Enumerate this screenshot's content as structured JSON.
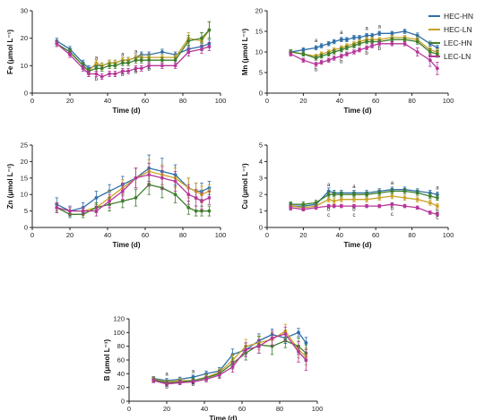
{
  "legend": [
    {
      "name": "HEC-HN",
      "color": "#2f6fa7"
    },
    {
      "name": "HEC-LN",
      "color": "#c9a227"
    },
    {
      "name": "LEC-HN",
      "color": "#3e7e2c"
    },
    {
      "name": "LEC-LN",
      "color": "#b6379a"
    }
  ],
  "chart_data": [
    {
      "type": "line",
      "ylabel": "Fe (μmol L⁻¹)",
      "xlabel": "Time (d)",
      "xlim": [
        0,
        100
      ],
      "ylim": [
        0,
        30
      ],
      "xticks": [
        0,
        20,
        40,
        60,
        80,
        100
      ],
      "yticks": [
        0,
        10,
        20,
        30
      ],
      "x": [
        13,
        20,
        27,
        30,
        34,
        37,
        41,
        44,
        48,
        51,
        55,
        58,
        62,
        69,
        76,
        83,
        90,
        94
      ],
      "series": [
        {
          "name": "HEC-HN",
          "color": "#2f6fa7",
          "values": [
            19,
            16,
            11,
            9,
            10,
            10,
            11,
            11,
            12,
            12,
            13,
            14,
            14,
            15,
            14,
            16,
            17,
            18
          ],
          "errors": [
            1,
            1,
            1,
            1,
            1,
            1,
            1,
            1,
            1,
            1,
            1,
            1,
            1,
            1,
            1,
            1.5,
            1.5,
            1.5
          ]
        },
        {
          "name": "HEC-LN",
          "color": "#c9a227",
          "values": [
            18,
            15,
            10,
            8,
            11,
            10,
            11,
            11,
            12,
            12,
            13,
            13,
            13,
            13,
            13,
            20,
            19,
            23
          ],
          "errors": [
            1,
            1,
            1,
            1,
            1,
            1,
            1,
            1,
            1,
            1,
            1,
            1,
            1,
            1,
            1,
            2,
            3,
            3
          ]
        },
        {
          "name": "LEC-HN",
          "color": "#3e7e2c",
          "values": [
            18,
            15,
            10,
            8,
            9,
            9,
            10,
            10,
            11,
            11,
            12,
            12,
            12,
            12,
            12,
            19,
            20,
            23
          ],
          "errors": [
            1,
            1,
            1,
            1,
            1,
            1,
            1,
            1,
            1,
            1,
            1,
            1,
            1,
            1,
            1,
            2,
            2,
            3
          ]
        },
        {
          "name": "LEC-LN",
          "color": "#b6379a",
          "values": [
            18,
            14,
            9,
            7,
            7,
            6,
            7,
            7,
            8,
            8,
            9,
            9,
            10,
            10,
            10,
            15,
            16,
            17
          ],
          "errors": [
            1,
            1,
            1,
            1,
            1,
            1,
            1,
            1,
            1,
            1,
            1,
            1,
            1,
            1,
            1,
            1.5,
            1.5,
            1.5
          ]
        }
      ],
      "annotations": [
        {
          "text": "a",
          "x": 34,
          "y": 12.3
        },
        {
          "text": "b",
          "x": 34,
          "y": 4.6
        },
        {
          "text": "a",
          "x": 48,
          "y": 13.5
        },
        {
          "text": "b",
          "x": 48,
          "y": 6.2
        },
        {
          "text": "a",
          "x": 55,
          "y": 14.5
        },
        {
          "text": "b",
          "x": 55,
          "y": 7.2
        },
        {
          "text": "b",
          "x": 62,
          "y": 8.1
        }
      ]
    },
    {
      "type": "line",
      "ylabel": "Mn (μmol L⁻¹)",
      "xlabel": "Time (d)",
      "xlim": [
        0,
        100
      ],
      "ylim": [
        0,
        20
      ],
      "xticks": [
        0,
        20,
        40,
        60,
        80,
        100
      ],
      "yticks": [
        0,
        5,
        10,
        15,
        20
      ],
      "x": [
        13,
        20,
        27,
        30,
        34,
        37,
        41,
        44,
        48,
        51,
        55,
        58,
        62,
        69,
        76,
        83,
        90,
        94
      ],
      "series": [
        {
          "name": "HEC-HN",
          "color": "#2f6fa7",
          "values": [
            10,
            10.5,
            11,
            11.5,
            12,
            12.5,
            13,
            13,
            13.5,
            13.5,
            14,
            14,
            14.5,
            14.5,
            15,
            14,
            12,
            11
          ],
          "errors": [
            0.5,
            0.5,
            0.5,
            0.5,
            0.5,
            0.5,
            0.5,
            0.5,
            0.5,
            0.5,
            0.5,
            0.5,
            0.5,
            0.5,
            0.5,
            0.6,
            0.6,
            0.6
          ]
        },
        {
          "name": "HEC-LN",
          "color": "#c9a227",
          "values": [
            10,
            9.5,
            9,
            9.5,
            10,
            10.5,
            11,
            11.5,
            12,
            12.5,
            13,
            13,
            13,
            13.5,
            13.5,
            13,
            10.5,
            10
          ],
          "errors": [
            0.5,
            0.5,
            0.5,
            0.5,
            0.5,
            0.5,
            0.5,
            0.5,
            0.5,
            0.5,
            0.5,
            0.5,
            0.5,
            0.5,
            0.5,
            0.6,
            0.6,
            0.8
          ]
        },
        {
          "name": "LEC-HN",
          "color": "#3e7e2c",
          "values": [
            10,
            9.5,
            8.5,
            9,
            9.5,
            10,
            10.5,
            11,
            11.5,
            12,
            12.5,
            12.5,
            12.5,
            13,
            13,
            12.5,
            10,
            9.5
          ],
          "errors": [
            0.5,
            0.5,
            0.5,
            0.5,
            0.5,
            0.5,
            0.5,
            0.5,
            0.5,
            0.5,
            0.5,
            0.5,
            0.5,
            0.5,
            0.5,
            0.6,
            0.8,
            0.8
          ]
        },
        {
          "name": "LEC-LN",
          "color": "#b6379a",
          "values": [
            9.5,
            8,
            7,
            7.5,
            8,
            8.5,
            9,
            9.5,
            10,
            10.5,
            11,
            11.5,
            12,
            12,
            12,
            10,
            8,
            6
          ],
          "errors": [
            0.5,
            0.5,
            0.5,
            0.5,
            0.5,
            0.5,
            0.5,
            0.5,
            0.5,
            0.5,
            0.5,
            0.5,
            0.5,
            0.5,
            0.5,
            1,
            1.5,
            1.5
          ]
        }
      ],
      "annotations": [
        {
          "text": "a",
          "x": 27,
          "y": 12.4
        },
        {
          "text": "b",
          "x": 27,
          "y": 5.3
        },
        {
          "text": "a",
          "x": 41,
          "y": 14.3
        },
        {
          "text": "b",
          "x": 41,
          "y": 7.3
        },
        {
          "text": "a",
          "x": 55,
          "y": 15.3
        },
        {
          "text": "b",
          "x": 55,
          "y": 9.3
        },
        {
          "text": "a",
          "x": 62,
          "y": 15.8
        },
        {
          "text": "b",
          "x": 62,
          "y": 10.4
        }
      ]
    },
    {
      "type": "line",
      "ylabel": "Zn (μmol L⁻¹)",
      "xlabel": "Time (d)",
      "xlim": [
        0,
        100
      ],
      "ylim": [
        0,
        25
      ],
      "xticks": [
        0,
        20,
        40,
        60,
        80,
        100
      ],
      "yticks": [
        0,
        5,
        10,
        15,
        20,
        25
      ],
      "x": [
        13,
        20,
        27,
        34,
        41,
        48,
        55,
        62,
        69,
        76,
        83,
        87,
        90,
        94
      ],
      "series": [
        {
          "name": "HEC-HN",
          "color": "#2f6fa7",
          "values": [
            7,
            5,
            6,
            9,
            11,
            13,
            15,
            18,
            17,
            16,
            12,
            11,
            11,
            12
          ],
          "errors": [
            2,
            1.5,
            1.5,
            2,
            2,
            2.5,
            3,
            4,
            4,
            3,
            3,
            2.5,
            2.5,
            2
          ]
        },
        {
          "name": "HEC-LN",
          "color": "#c9a227",
          "values": [
            6,
            5,
            5,
            6,
            9,
            12,
            15,
            17,
            16,
            15,
            12,
            11,
            10,
            11
          ],
          "errors": [
            1.5,
            1,
            1,
            1.5,
            2,
            2.5,
            3,
            3.5,
            3,
            3,
            3,
            2.5,
            2.5,
            2
          ]
        },
        {
          "name": "LEC-HN",
          "color": "#3e7e2c",
          "values": [
            6,
            4,
            4,
            6,
            7,
            8,
            9,
            13,
            12,
            10,
            6,
            5,
            5,
            5
          ],
          "errors": [
            1.5,
            1,
            1,
            1.5,
            2,
            2,
            2.5,
            3,
            3,
            2.5,
            2,
            1.5,
            1.5,
            1.5
          ]
        },
        {
          "name": "LEC-LN",
          "color": "#b6379a",
          "values": [
            6,
            5,
            5,
            5,
            8,
            11,
            15,
            16,
            15,
            14,
            10,
            9,
            8,
            9
          ],
          "errors": [
            1.5,
            1,
            1,
            1.5,
            2,
            2.5,
            3,
            3.5,
            3.5,
            3,
            3,
            2.5,
            2.5,
            2
          ]
        }
      ],
      "annotations": []
    },
    {
      "type": "line",
      "ylabel": "Cu (μmol L⁻¹)",
      "xlabel": "Time (d)",
      "xlim": [
        0,
        100
      ],
      "ylim": [
        0,
        5
      ],
      "xticks": [
        0,
        20,
        40,
        60,
        80,
        100
      ],
      "yticks": [
        0,
        1,
        2,
        3,
        4,
        5
      ],
      "x": [
        13,
        20,
        27,
        34,
        37,
        41,
        48,
        55,
        62,
        69,
        76,
        83,
        90,
        94
      ],
      "series": [
        {
          "name": "HEC-HN",
          "color": "#2f6fa7",
          "values": [
            1.3,
            1.3,
            1.4,
            2.2,
            2.1,
            2.1,
            2.1,
            2.1,
            2.2,
            2.3,
            2.3,
            2.2,
            2.1,
            2.0
          ],
          "errors": [
            0.2,
            0.15,
            0.15,
            0.2,
            0.15,
            0.15,
            0.15,
            0.15,
            0.15,
            0.15,
            0.15,
            0.15,
            0.15,
            0.15
          ]
        },
        {
          "name": "HEC-LN",
          "color": "#c9a227",
          "values": [
            1.3,
            1.2,
            1.3,
            1.7,
            1.6,
            1.7,
            1.7,
            1.7,
            1.8,
            1.9,
            1.8,
            1.7,
            1.5,
            1.3
          ],
          "errors": [
            0.15,
            0.15,
            0.15,
            0.15,
            0.15,
            0.15,
            0.15,
            0.15,
            0.15,
            0.15,
            0.15,
            0.15,
            0.15,
            0.15
          ]
        },
        {
          "name": "LEC-HN",
          "color": "#3e7e2c",
          "values": [
            1.4,
            1.4,
            1.5,
            2.0,
            2.0,
            2.0,
            2.0,
            2.0,
            2.1,
            2.2,
            2.2,
            2.1,
            1.9,
            1.8
          ],
          "errors": [
            0.15,
            0.15,
            0.15,
            0.15,
            0.15,
            0.15,
            0.15,
            0.15,
            0.15,
            0.15,
            0.15,
            0.15,
            0.15,
            0.15
          ]
        },
        {
          "name": "LEC-LN",
          "color": "#b6379a",
          "values": [
            1.2,
            1.1,
            1.2,
            1.3,
            1.3,
            1.3,
            1.3,
            1.3,
            1.3,
            1.4,
            1.3,
            1.2,
            0.9,
            0.8
          ],
          "errors": [
            0.15,
            0.1,
            0.1,
            0.1,
            0.1,
            0.1,
            0.1,
            0.1,
            0.1,
            0.1,
            0.1,
            0.1,
            0.1,
            0.1
          ]
        }
      ],
      "annotations": [
        {
          "text": "a",
          "x": 34,
          "y": 2.5
        },
        {
          "text": "b",
          "x": 34,
          "y": 1.0
        },
        {
          "text": "c",
          "x": 34,
          "y": 0.65
        },
        {
          "text": "a",
          "x": 48,
          "y": 2.4
        },
        {
          "text": "b",
          "x": 48,
          "y": 1.0
        },
        {
          "text": "c",
          "x": 48,
          "y": 0.65
        },
        {
          "text": "a",
          "x": 69,
          "y": 2.6
        },
        {
          "text": "b",
          "x": 69,
          "y": 1.05
        },
        {
          "text": "c",
          "x": 69,
          "y": 0.7
        },
        {
          "text": "a",
          "x": 94,
          "y": 2.3
        },
        {
          "text": "b",
          "x": 94,
          "y": 0.9
        },
        {
          "text": "c",
          "x": 94,
          "y": 0.5
        }
      ]
    },
    {
      "type": "line",
      "ylabel": "B (μmol L⁻¹)",
      "xlabel": "Time (d)",
      "xlim": [
        0,
        100
      ],
      "ylim": [
        0,
        120
      ],
      "xticks": [
        0,
        20,
        40,
        60,
        80,
        100
      ],
      "yticks": [
        0,
        20,
        40,
        60,
        80,
        100,
        120
      ],
      "x": [
        13,
        20,
        27,
        34,
        41,
        48,
        55,
        62,
        69,
        76,
        83,
        90,
        94
      ],
      "series": [
        {
          "name": "HEC-HN",
          "color": "#2f6fa7",
          "values": [
            33,
            30,
            32,
            35,
            40,
            44,
            68,
            75,
            88,
            97,
            92,
            100,
            85
          ],
          "errors": [
            3,
            3,
            3,
            3,
            4,
            5,
            8,
            10,
            10,
            8,
            8,
            6,
            8
          ]
        },
        {
          "name": "HEC-LN",
          "color": "#c9a227",
          "values": [
            32,
            28,
            30,
            30,
            35,
            42,
            60,
            80,
            85,
            90,
            102,
            75,
            65
          ],
          "errors": [
            3,
            3,
            3,
            3,
            4,
            5,
            8,
            10,
            10,
            10,
            10,
            12,
            12
          ]
        },
        {
          "name": "LEC-HN",
          "color": "#3e7e2c",
          "values": [
            31,
            27,
            28,
            30,
            34,
            40,
            55,
            70,
            82,
            80,
            88,
            80,
            70
          ],
          "errors": [
            3,
            3,
            3,
            3,
            4,
            5,
            8,
            10,
            12,
            12,
            10,
            12,
            12
          ]
        },
        {
          "name": "LEC-LN",
          "color": "#b6379a",
          "values": [
            30,
            25,
            27,
            28,
            32,
            38,
            50,
            75,
            80,
            92,
            98,
            72,
            60
          ],
          "errors": [
            3,
            3,
            3,
            3,
            4,
            5,
            8,
            10,
            10,
            10,
            10,
            15,
            15
          ]
        }
      ],
      "annotations": [
        {
          "text": "a",
          "x": 20,
          "y": 37
        },
        {
          "text": "b",
          "x": 20,
          "y": 18
        },
        {
          "text": "a",
          "x": 34,
          "y": 41
        },
        {
          "text": "b",
          "x": 34,
          "y": 22
        }
      ]
    }
  ]
}
